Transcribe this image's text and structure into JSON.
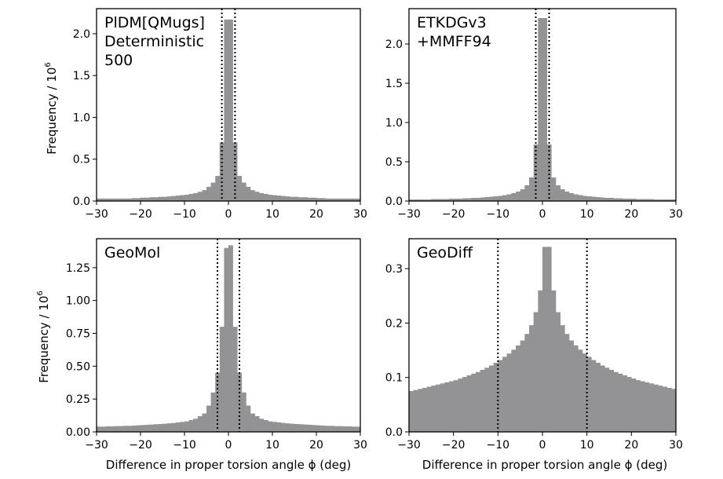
{
  "figure": {
    "ylabel_main": "Frequency / 10",
    "ylabel_sup": "6",
    "xlabel": "Difference in proper torsion angle ϕ (deg)"
  },
  "chart_data": [
    {
      "type": "bar",
      "title": "PlDM[QMugs]\nDeterministic\n500",
      "xlim": [
        -30,
        30
      ],
      "ylim": [
        0,
        2.3
      ],
      "xticks": [
        -30,
        -20,
        -10,
        0,
        10,
        20,
        30
      ],
      "yticks": [
        0.0,
        0.5,
        1.0,
        1.5,
        2.0
      ],
      "ytick_labels": [
        "0.0",
        "0.5",
        "1.0",
        "1.5",
        "2.0"
      ],
      "vlines": [
        -1.5,
        1.5
      ],
      "bin_start": -30,
      "bin_width": 1,
      "values": [
        0.03,
        0.03,
        0.03,
        0.03,
        0.03,
        0.03,
        0.03,
        0.03,
        0.035,
        0.035,
        0.04,
        0.04,
        0.045,
        0.045,
        0.05,
        0.05,
        0.055,
        0.06,
        0.065,
        0.07,
        0.075,
        0.085,
        0.095,
        0.11,
        0.13,
        0.17,
        0.22,
        0.3,
        0.7,
        2.17,
        2.17,
        0.7,
        0.3,
        0.22,
        0.17,
        0.13,
        0.11,
        0.095,
        0.085,
        0.075,
        0.07,
        0.065,
        0.06,
        0.055,
        0.05,
        0.05,
        0.045,
        0.045,
        0.04,
        0.04,
        0.035,
        0.035,
        0.03,
        0.03,
        0.03,
        0.03,
        0.03,
        0.03,
        0.03,
        0.03
      ]
    },
    {
      "type": "bar",
      "title": "ETKDGv3\n+MMFF94",
      "xlim": [
        -30,
        30
      ],
      "ylim": [
        0,
        2.45
      ],
      "xticks": [
        -30,
        -20,
        -10,
        0,
        10,
        20,
        30
      ],
      "yticks": [
        0.0,
        0.5,
        1.0,
        1.5,
        2.0
      ],
      "ytick_labels": [
        "0.0",
        "0.5",
        "1.0",
        "1.5",
        "2.0"
      ],
      "vlines": [
        -1.5,
        1.5
      ],
      "bin_start": -30,
      "bin_width": 1,
      "values": [
        0.02,
        0.02,
        0.02,
        0.02,
        0.02,
        0.025,
        0.025,
        0.025,
        0.025,
        0.03,
        0.03,
        0.03,
        0.035,
        0.035,
        0.04,
        0.04,
        0.045,
        0.05,
        0.055,
        0.06,
        0.065,
        0.075,
        0.085,
        0.1,
        0.12,
        0.15,
        0.2,
        0.3,
        0.72,
        2.33,
        2.33,
        0.72,
        0.3,
        0.2,
        0.15,
        0.12,
        0.1,
        0.085,
        0.075,
        0.065,
        0.06,
        0.055,
        0.05,
        0.045,
        0.04,
        0.04,
        0.035,
        0.035,
        0.03,
        0.03,
        0.03,
        0.025,
        0.025,
        0.025,
        0.025,
        0.02,
        0.02,
        0.02,
        0.02,
        0.02
      ]
    },
    {
      "type": "bar",
      "title": "GeoMol",
      "xlim": [
        -30,
        30
      ],
      "ylim": [
        0,
        1.47
      ],
      "xticks": [
        -30,
        -20,
        -10,
        0,
        10,
        20,
        30
      ],
      "yticks": [
        0.0,
        0.25,
        0.5,
        0.75,
        1.0,
        1.25
      ],
      "ytick_labels": [
        "0.00",
        "0.25",
        "0.50",
        "0.75",
        "1.00",
        "1.25"
      ],
      "vlines": [
        -2.5,
        2.5
      ],
      "bin_start": -30,
      "bin_width": 1,
      "values": [
        0.04,
        0.04,
        0.042,
        0.042,
        0.044,
        0.044,
        0.046,
        0.046,
        0.048,
        0.05,
        0.052,
        0.054,
        0.056,
        0.058,
        0.06,
        0.062,
        0.065,
        0.068,
        0.072,
        0.076,
        0.08,
        0.09,
        0.1,
        0.12,
        0.14,
        0.2,
        0.3,
        0.45,
        0.8,
        1.4,
        1.42,
        0.8,
        0.45,
        0.3,
        0.2,
        0.14,
        0.12,
        0.1,
        0.09,
        0.08,
        0.076,
        0.072,
        0.068,
        0.065,
        0.062,
        0.06,
        0.058,
        0.056,
        0.054,
        0.052,
        0.05,
        0.048,
        0.046,
        0.046,
        0.044,
        0.044,
        0.042,
        0.042,
        0.04,
        0.04
      ]
    },
    {
      "type": "bar",
      "title": "GeoDiff",
      "xlim": [
        -30,
        30
      ],
      "ylim": [
        0,
        0.355
      ],
      "xticks": [
        -30,
        -20,
        -10,
        0,
        10,
        20,
        30
      ],
      "yticks": [
        0.0,
        0.1,
        0.2,
        0.3
      ],
      "ytick_labels": [
        "0.0",
        "0.1",
        "0.2",
        "0.3"
      ],
      "vlines": [
        -10,
        10
      ],
      "bin_start": -30,
      "bin_width": 1,
      "values": [
        0.075,
        0.077,
        0.079,
        0.081,
        0.083,
        0.085,
        0.087,
        0.089,
        0.091,
        0.093,
        0.095,
        0.098,
        0.101,
        0.104,
        0.107,
        0.11,
        0.114,
        0.118,
        0.122,
        0.127,
        0.132,
        0.138,
        0.144,
        0.151,
        0.159,
        0.168,
        0.18,
        0.196,
        0.22,
        0.26,
        0.34,
        0.34,
        0.26,
        0.22,
        0.196,
        0.18,
        0.168,
        0.159,
        0.151,
        0.144,
        0.138,
        0.132,
        0.127,
        0.122,
        0.118,
        0.114,
        0.11,
        0.107,
        0.104,
        0.101,
        0.098,
        0.095,
        0.093,
        0.091,
        0.089,
        0.087,
        0.085,
        0.083,
        0.081,
        0.079
      ]
    }
  ]
}
